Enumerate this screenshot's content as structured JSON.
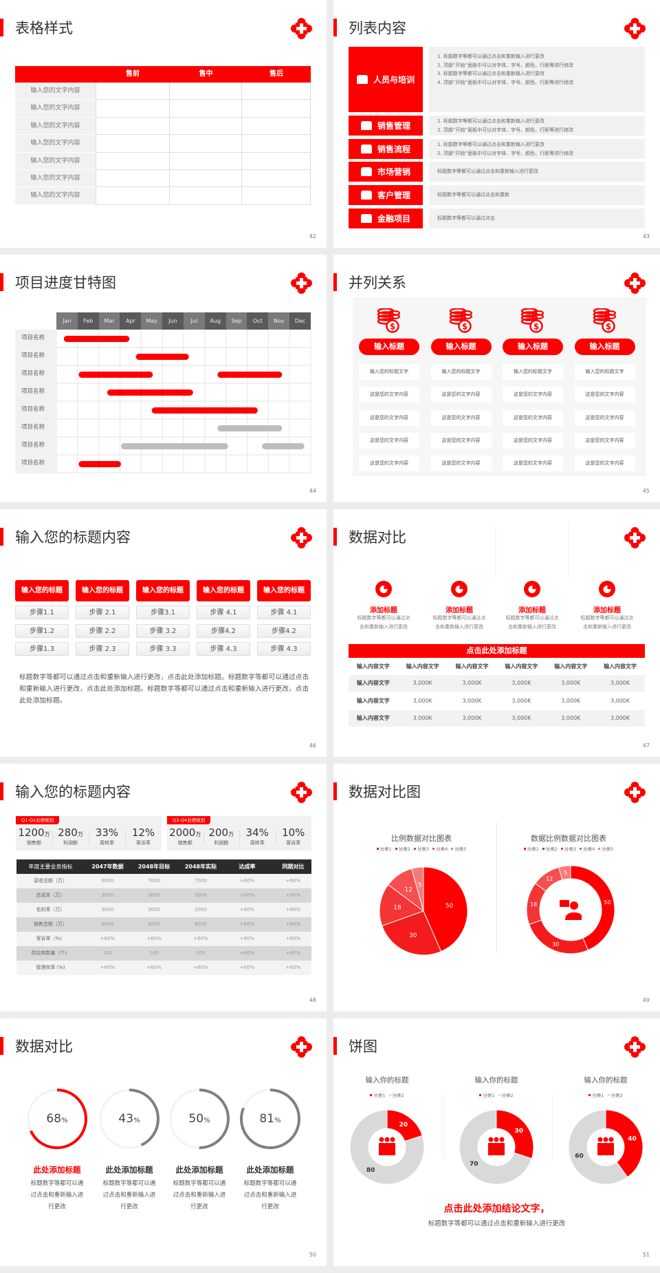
{
  "colors": {
    "accent": "#ff0000",
    "dark": "#2b2b2b",
    "grey": "#bdbdbd",
    "light": "#f1f1f1"
  },
  "logo_icon": "red-quatrefoil-cross-icon",
  "slides": [
    {
      "title": "表格样式",
      "page": "42",
      "table": {
        "headers": [
          "",
          "售前",
          "售中",
          "售后"
        ],
        "rows": [
          "输入您的文字内容",
          "输入您的文字内容",
          "输入您的文字内容",
          "输入您的文字内容",
          "输入您的文字内容",
          "输入您的文字内容",
          "输入您的文字内容"
        ]
      }
    },
    {
      "title": "列表内容",
      "page": "43",
      "items": [
        {
          "label": "人员与培训",
          "icon": "presentation-people-icon",
          "lines": [
            "1.  标题数字等都可以通过点击和重新输入进行更改",
            "2.  顶部“开始”面板中可以对字体、字号、颜色、行距等进行修改",
            "3.  标题数字等都可以通过点击和重新输入进行更改",
            "4.  顶部“开始”面板中可以对字体、字号、颜色、行距等进行修改"
          ]
        },
        {
          "label": "销售管理",
          "icon": "person-gear-icon",
          "lines": [
            "1.  标题数字等都可以通过点击和重新输入进行更改",
            "2.  顶部“开始”面板中可以对字体、字号、颜色、行距等进行修改"
          ]
        },
        {
          "label": "销售流程",
          "icon": "cycle-icon",
          "lines": [
            "1.  标题数字等都可以通过点击和重新输入进行更改",
            "2.  顶部“开始”面板中可以对字体、字号、颜色、行距等进行修改"
          ]
        },
        {
          "label": "市场营销",
          "icon": "bar-chart-icon",
          "lines": [
            "标题数字等都可以通过点击和重新输入进行更改"
          ]
        },
        {
          "label": "客户管理",
          "icon": "group-icon",
          "lines": [
            "标题数字等都可以通过点击和重新"
          ]
        },
        {
          "label": "金融项目",
          "icon": "money-hand-icon",
          "lines": [
            "标题数字等都可以通过点击"
          ]
        }
      ]
    },
    {
      "title": "项目进度甘特图",
      "page": "44",
      "gantt": {
        "months": [
          "Jan",
          "Feb",
          "Mar",
          "Apr",
          "May",
          "Jun",
          "Jul",
          "Aug",
          "Sep",
          "Oct",
          "Nov",
          "Dec"
        ],
        "rows": [
          {
            "label": "项目名称",
            "bars": [
              {
                "start": 0.35,
                "end": 3.45,
                "status": "active"
              }
            ]
          },
          {
            "label": "项目名称",
            "bars": [
              {
                "start": 3.75,
                "end": 6.25,
                "status": "active"
              }
            ]
          },
          {
            "label": "项目名称",
            "bars": [
              {
                "start": 1.05,
                "end": 4.55,
                "status": "active"
              },
              {
                "start": 7.6,
                "end": 10.65,
                "status": "active"
              }
            ]
          },
          {
            "label": "项目名称",
            "bars": [
              {
                "start": 2.4,
                "end": 6.45,
                "status": "active"
              }
            ]
          },
          {
            "label": "项目名称",
            "bars": [
              {
                "start": 4.5,
                "end": 9.5,
                "status": "active"
              }
            ]
          },
          {
            "label": "项目名称",
            "bars": [
              {
                "start": 7.6,
                "end": 10.65,
                "status": "inactive"
              }
            ]
          },
          {
            "label": "项目名称",
            "bars": [
              {
                "start": 3.05,
                "end": 8.1,
                "status": "inactive"
              },
              {
                "start": 9.7,
                "end": 11.7,
                "status": "inactive"
              }
            ]
          },
          {
            "label": "项目名称",
            "bars": [
              {
                "start": 1.05,
                "end": 3.05,
                "status": "active"
              }
            ]
          }
        ]
      }
    },
    {
      "title": "并列关系",
      "page": "45",
      "columns": [
        {
          "icon": "coins-dollar-icon",
          "heading": "输入标题",
          "cells": [
            "输入您的标题文字",
            "这是您的文字内容",
            "这是您的文字内容",
            "这是您的文字内容",
            "这是您的文字内容"
          ]
        },
        {
          "icon": "coins-dollar-icon",
          "heading": "输入标题",
          "cells": [
            "输入您的标题文字",
            "这是您的文字内容",
            "这是您的文字内容",
            "这是您的文字内容",
            "这是您的文字内容"
          ]
        },
        {
          "icon": "coins-dollar-icon",
          "heading": "输入标题",
          "cells": [
            "输入您的标题文字",
            "这是您的文字内容",
            "这是您的文字内容",
            "这是您的文字内容",
            "这是您的文字内容"
          ]
        },
        {
          "icon": "coins-dollar-icon",
          "heading": "输入标题",
          "cells": [
            "输入您的标题文字",
            "这是您的文字内容",
            "这是您的文字内容",
            "这是您的文字内容",
            "这是您的文字内容"
          ]
        }
      ]
    },
    {
      "title": "输入您的标题内容",
      "page": "46",
      "columns": [
        {
          "heading": "输入您的标题",
          "steps": [
            "步骤1.1",
            "步骤1.2",
            "步骤1.3"
          ]
        },
        {
          "heading": "输入您的标题",
          "steps": [
            "步骤 2.1",
            "步骤 2.2",
            "步骤 2.3"
          ]
        },
        {
          "heading": "输入您的标题",
          "steps": [
            "步骤3.1",
            "步骤 3.2",
            "步骤 3.3"
          ]
        },
        {
          "heading": "输入您的标题",
          "steps": [
            "步骤 4.1",
            "步骤4.2",
            "步骤 4.3"
          ]
        },
        {
          "heading": "输入您的标题",
          "steps": [
            "步骤 4.1",
            "步骤4.2",
            "步骤 4.3"
          ]
        }
      ],
      "paragraph": "标题数字等都可以通过点击和重新输入进行更改，点击此处添加标题。标题数字等都可以通过点击和重新输入进行更改，点击此处添加标题。标题数字等都可以通过点击和重新输入进行更改，点击此处添加标题。"
    },
    {
      "title": "数据对比",
      "page": "47",
      "features": [
        {
          "icon": "pie-chart-icon",
          "heading": "添加标题",
          "desc": [
            "标题数字等都可以通过点",
            "击和重新输入进行更改"
          ]
        },
        {
          "icon": "pie-chart-icon",
          "heading": "添加标题",
          "desc": [
            "标题数字等都可以通过点",
            "击和重新输入进行更改"
          ]
        },
        {
          "icon": "pie-chart-icon",
          "heading": "添加标题",
          "desc": [
            "标题数字等都可以通过点",
            "击和重新输入进行更改"
          ]
        },
        {
          "icon": "pie-chart-icon",
          "heading": "添加标题",
          "desc": [
            "标题数字等都可以通过点",
            "击和重新输入进行更改"
          ]
        }
      ],
      "table_title": "点击此处添加标题",
      "table": {
        "headers": [
          "输入内容文字",
          "输入内容文字",
          "输入内容文字",
          "输入内容文字",
          "输入内容文字",
          "输入内容文字"
        ],
        "rows": [
          [
            "输入内容文字",
            "3,000K",
            "3,000K",
            "3,000K",
            "3,000K",
            "3,000K"
          ],
          [
            "输入内容文字",
            "3,000K",
            "3,000K",
            "3,000K",
            "3,000K",
            "3,000K"
          ],
          [
            "输入内容文字",
            "3,000K",
            "3,000K",
            "3,000K",
            "3,000K",
            "3,000K"
          ]
        ]
      }
    },
    {
      "title": "输入您的标题内容",
      "page": "48",
      "stat_groups": [
        {
          "tag": "Q1-Q2业绩规划",
          "stats": [
            {
              "value": "1200",
              "unit": "万",
              "label": "销售额"
            },
            {
              "value": "280",
              "unit": "万",
              "label": "利润额"
            },
            {
              "value": "33%",
              "unit": "",
              "label": "周转率"
            },
            {
              "value": "12%",
              "unit": "",
              "label": "客诉率"
            }
          ]
        },
        {
          "tag": "Q3-Q4业绩规划",
          "stats": [
            {
              "value": "2000",
              "unit": "万",
              "label": "销售额"
            },
            {
              "value": "200",
              "unit": "万",
              "label": "利润额"
            },
            {
              "value": "34%",
              "unit": "",
              "label": "周转率"
            },
            {
              "value": "10%",
              "unit": "",
              "label": "客诉率"
            }
          ]
        }
      ],
      "table": {
        "headers": [
          "年度主要业务指标",
          "2047年数据",
          "2048年目标",
          "2048年实际",
          "达成率",
          "同期对比"
        ],
        "rows": [
          [
            "营收总额（万）",
            "6000",
            "7000",
            "7000",
            "+60%",
            "+60%"
          ],
          [
            "总成本（万）",
            "3000",
            "3000",
            "3000",
            "+60%",
            "+60%"
          ],
          [
            "毛利率（万）",
            "3000",
            "3000",
            "3000",
            "+60%",
            "+60%"
          ],
          [
            "销售总额（万）",
            "6000",
            "6000",
            "6000",
            "+60%",
            "+60%"
          ],
          [
            "客诉率（%）",
            "+60%",
            "+60%",
            "+60%",
            "+60%",
            "+60%"
          ],
          [
            "供应商数量（个）",
            "100",
            "100",
            "100",
            "+60%",
            "+60%"
          ],
          [
            "管理效率 (%)",
            "+60%",
            "+60%",
            "+60%",
            "+60%",
            "+60%"
          ]
        ]
      }
    },
    {
      "title": "数据对比图",
      "page": "49"
    },
    {
      "title": "数据对比",
      "page": "50",
      "rings": [
        {
          "percent": 68,
          "heading": "此处添加标题",
          "desc": [
            "标题数字等都可以通",
            "过点击和重新输入进",
            "行更改"
          ],
          "highlight": true
        },
        {
          "percent": 43,
          "heading": "此处添加标题",
          "desc": [
            "标题数字等都可以通",
            "过点击和重新输入进",
            "行更改"
          ],
          "highlight": false
        },
        {
          "percent": 50,
          "heading": "此处添加标题",
          "desc": [
            "标题数字等都可以通",
            "过点击和重新输入进",
            "行更改"
          ],
          "highlight": false
        },
        {
          "percent": 81,
          "heading": "此处添加标题",
          "desc": [
            "标题数字等都可以通",
            "过点击和重新输入进",
            "行更改"
          ],
          "highlight": false
        }
      ],
      "percent_sign": "%"
    },
    {
      "title": "饼图",
      "page": "51",
      "conclusion": "点击此处添加结论文字，",
      "subtitle": "标题数字等都可以通过点击和重新输入进行更改"
    }
  ],
  "chart_data": [
    {
      "type": "pie",
      "title": "比例数据对比图表",
      "categories": [
        "分类1",
        "分类2",
        "分类3",
        "分类4",
        "分类5"
      ],
      "values": [
        50,
        30,
        18,
        12,
        5
      ],
      "legend": "top",
      "colors": [
        "#ff0000",
        "#f31b1b",
        "#f43535",
        "#f64f4f",
        "#f77a7a"
      ]
    },
    {
      "type": "pie",
      "variant": "donut",
      "title": "数据比例数据对比图表",
      "categories": [
        "分类1",
        "分类2",
        "分类3",
        "分类4",
        "分类5"
      ],
      "values": [
        50,
        30,
        18,
        12,
        5
      ],
      "legend": "top",
      "center_icon": "customer-service-icon",
      "colors": [
        "#ff0000",
        "#f31b1b",
        "#f43535",
        "#f64f4f",
        "#f77a7a"
      ]
    },
    {
      "type": "pie",
      "variant": "donut",
      "title": "输入你的标题",
      "categories": [
        "分类1",
        "分类2"
      ],
      "values": [
        20,
        80
      ],
      "legend": "top",
      "center_icon": "team-icon",
      "colors": [
        "#ff0000",
        "#d9d9d9"
      ]
    },
    {
      "type": "pie",
      "variant": "donut",
      "title": "输入你的标题",
      "categories": [
        "分类1",
        "分类2"
      ],
      "values": [
        30,
        70
      ],
      "legend": "top",
      "center_icon": "team-icon",
      "colors": [
        "#ff0000",
        "#d9d9d9"
      ]
    },
    {
      "type": "pie",
      "variant": "donut",
      "title": "输入你的标题",
      "categories": [
        "分类1",
        "分类2"
      ],
      "values": [
        40,
        60
      ],
      "legend": "top",
      "center_icon": "team-icon",
      "colors": [
        "#ff0000",
        "#d9d9d9"
      ]
    }
  ]
}
